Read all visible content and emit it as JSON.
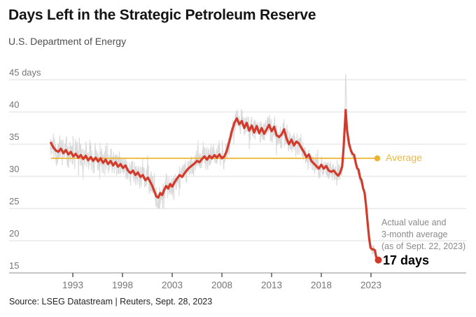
{
  "header": {
    "title": "Days Left in the Strategic Petroleum Reserve",
    "subtitle": "U.S. Department of Energy"
  },
  "annotation": {
    "line1": "Actual value and",
    "line2": "3-month average",
    "line3": "(as of Sept. 22, 2023)",
    "value_label": "17 days"
  },
  "footer": {
    "source": "Source: LSEG Datastream | Reuters, Sept. 28, 2023"
  },
  "colors": {
    "red": "#d23b2c",
    "gray": "#d8d8d8",
    "gold_line": "#ecb22e",
    "gold_label": "#e9b84b",
    "grid": "#dedede",
    "axis_baseline": "#a3a3a3",
    "tick": "#4d4d4d",
    "axis_label": "#767676",
    "title": "#141414",
    "subtitle": "#4d4d4d",
    "annotation": "#8a8a8a",
    "value_label": "#000000",
    "source": "#232323",
    "background": "#ffffff"
  },
  "chart_data": {
    "type": "line",
    "title": "Days Left in the Strategic Petroleum Reserve",
    "xlabel": "",
    "ylabel": "",
    "grid": true,
    "legend_position": "none",
    "xlim": [
      1988.4,
      2032.6
    ],
    "ylim": [
      15,
      45
    ],
    "x_axis": {
      "ticks": [
        1993,
        1998,
        2003,
        2008,
        2013,
        2018,
        2023
      ]
    },
    "y_axis": {
      "ticks": [
        {
          "v": 15,
          "label": "15"
        },
        {
          "v": 20,
          "label": "20"
        },
        {
          "v": 25,
          "label": "25"
        },
        {
          "v": 30,
          "label": "30"
        },
        {
          "v": 35,
          "label": "35"
        },
        {
          "v": 40,
          "label": "40"
        },
        {
          "v": 45,
          "label": "45 days"
        }
      ]
    },
    "average_line": {
      "label": "Average",
      "value": 32.8,
      "start_year": 1990.8,
      "end_year": 2023.63
    },
    "end_point": {
      "year": 2023.74,
      "value": 17
    },
    "series": [
      {
        "name": "3-month average",
        "color_key": "red",
        "points": [
          [
            1990.8,
            35.2
          ],
          [
            1991.05,
            34.5
          ],
          [
            1991.3,
            34.0
          ],
          [
            1991.55,
            33.8
          ],
          [
            1991.8,
            34.3
          ],
          [
            1992.05,
            33.6
          ],
          [
            1992.3,
            34.1
          ],
          [
            1992.55,
            33.4
          ],
          [
            1992.8,
            33.8
          ],
          [
            1993.05,
            33.1
          ],
          [
            1993.3,
            33.5
          ],
          [
            1993.55,
            32.9
          ],
          [
            1993.8,
            33.3
          ],
          [
            1994.05,
            32.7
          ],
          [
            1994.3,
            33.2
          ],
          [
            1994.55,
            32.5
          ],
          [
            1994.8,
            33.0
          ],
          [
            1995.05,
            32.4
          ],
          [
            1995.3,
            32.9
          ],
          [
            1995.55,
            32.3
          ],
          [
            1995.8,
            32.8
          ],
          [
            1996.05,
            32.1
          ],
          [
            1996.3,
            32.6
          ],
          [
            1996.55,
            31.9
          ],
          [
            1996.8,
            32.4
          ],
          [
            1997.05,
            31.7
          ],
          [
            1997.3,
            32.2
          ],
          [
            1997.55,
            31.5
          ],
          [
            1997.8,
            31.9
          ],
          [
            1998.05,
            31.3
          ],
          [
            1998.3,
            31.7
          ],
          [
            1998.55,
            30.9
          ],
          [
            1998.8,
            30.5
          ],
          [
            1999.05,
            30.9
          ],
          [
            1999.3,
            30.2
          ],
          [
            1999.55,
            30.6
          ],
          [
            1999.8,
            29.9
          ],
          [
            2000.05,
            30.2
          ],
          [
            2000.3,
            29.4
          ],
          [
            2000.55,
            29.8
          ],
          [
            2000.8,
            29.1
          ],
          [
            2001.0,
            28.5
          ],
          [
            2001.2,
            27.7
          ],
          [
            2001.4,
            26.9
          ],
          [
            2001.6,
            26.7
          ],
          [
            2001.8,
            27.4
          ],
          [
            2002.0,
            27.1
          ],
          [
            2002.2,
            27.9
          ],
          [
            2002.4,
            28.5
          ],
          [
            2002.6,
            28.1
          ],
          [
            2002.8,
            28.8
          ],
          [
            2003.0,
            28.4
          ],
          [
            2003.25,
            29.1
          ],
          [
            2003.5,
            29.7
          ],
          [
            2003.75,
            30.2
          ],
          [
            2004.0,
            29.9
          ],
          [
            2004.25,
            30.5
          ],
          [
            2004.5,
            31.0
          ],
          [
            2004.75,
            31.4
          ],
          [
            2005.0,
            31.7
          ],
          [
            2005.25,
            32.0
          ],
          [
            2005.5,
            32.4
          ],
          [
            2005.75,
            32.2
          ],
          [
            2006.0,
            32.7
          ],
          [
            2006.25,
            33.1
          ],
          [
            2006.5,
            32.6
          ],
          [
            2006.75,
            33.2
          ],
          [
            2007.0,
            32.8
          ],
          [
            2007.25,
            33.3
          ],
          [
            2007.5,
            32.9
          ],
          [
            2007.75,
            33.4
          ],
          [
            2008.0,
            32.8
          ],
          [
            2008.25,
            33.1
          ],
          [
            2008.5,
            34.0
          ],
          [
            2008.75,
            35.4
          ],
          [
            2009.0,
            37.0
          ],
          [
            2009.25,
            38.3
          ],
          [
            2009.5,
            39.0
          ],
          [
            2009.75,
            38.1
          ],
          [
            2010.0,
            38.6
          ],
          [
            2010.25,
            37.5
          ],
          [
            2010.5,
            38.3
          ],
          [
            2010.75,
            37.1
          ],
          [
            2011.0,
            37.9
          ],
          [
            2011.25,
            36.8
          ],
          [
            2011.5,
            37.8
          ],
          [
            2011.75,
            36.7
          ],
          [
            2012.0,
            37.5
          ],
          [
            2012.25,
            36.6
          ],
          [
            2012.5,
            37.3
          ],
          [
            2012.75,
            38.0
          ],
          [
            2013.0,
            37.0
          ],
          [
            2013.25,
            37.7
          ],
          [
            2013.5,
            36.4
          ],
          [
            2013.75,
            36.1
          ],
          [
            2014.0,
            36.5
          ],
          [
            2014.25,
            37.3
          ],
          [
            2014.5,
            35.9
          ],
          [
            2014.75,
            35.0
          ],
          [
            2015.0,
            35.7
          ],
          [
            2015.25,
            34.8
          ],
          [
            2015.5,
            35.4
          ],
          [
            2015.75,
            35.1
          ],
          [
            2016.0,
            34.4
          ],
          [
            2016.25,
            33.8
          ],
          [
            2016.5,
            33.0
          ],
          [
            2016.75,
            33.4
          ],
          [
            2017.0,
            32.4
          ],
          [
            2017.25,
            32.0
          ],
          [
            2017.5,
            31.6
          ],
          [
            2017.75,
            31.2
          ],
          [
            2018.0,
            31.8
          ],
          [
            2018.25,
            31.2
          ],
          [
            2018.5,
            31.6
          ],
          [
            2018.75,
            30.9
          ],
          [
            2019.0,
            30.7
          ],
          [
            2019.25,
            30.9
          ],
          [
            2019.5,
            30.4
          ],
          [
            2019.7,
            30.1
          ],
          [
            2019.9,
            30.6
          ],
          [
            2020.1,
            31.5
          ],
          [
            2020.25,
            34.5
          ],
          [
            2020.45,
            40.3
          ],
          [
            2020.6,
            37.0
          ],
          [
            2020.8,
            35.0
          ],
          [
            2021.0,
            33.9
          ],
          [
            2021.15,
            33.5
          ],
          [
            2021.3,
            33.3
          ],
          [
            2021.45,
            32.2
          ],
          [
            2021.6,
            31.3
          ],
          [
            2021.75,
            31.0
          ],
          [
            2021.9,
            29.8
          ],
          [
            2022.05,
            29.4
          ],
          [
            2022.2,
            28.2
          ],
          [
            2022.35,
            27.5
          ],
          [
            2022.5,
            25.5
          ],
          [
            2022.65,
            23.0
          ],
          [
            2022.8,
            20.5
          ],
          [
            2022.95,
            18.9
          ],
          [
            2023.1,
            18.7
          ],
          [
            2023.25,
            18.65
          ],
          [
            2023.4,
            18.5
          ],
          [
            2023.5,
            17.6
          ],
          [
            2023.62,
            17.2
          ],
          [
            2023.74,
            17.0
          ]
        ]
      },
      {
        "name": "Actual value",
        "color_key": "gray",
        "derived_noise": {
          "seed": 11,
          "step": 0.02,
          "range": [
            1990.72,
            2023.74
          ],
          "amplitudes": [
            [
              1990.72,
              2.4
            ],
            [
              1996,
              2.2
            ],
            [
              2001,
              2.05
            ],
            [
              2006,
              1.95
            ],
            [
              2016,
              1.65
            ],
            [
              2019.4,
              2.1
            ],
            [
              2020.75,
              0.85
            ]
          ],
          "spike": {
            "center": 2020.45,
            "sigma": 0.07,
            "height": 5.4
          },
          "clamp": [
            16.1,
            46.3
          ]
        }
      }
    ]
  }
}
